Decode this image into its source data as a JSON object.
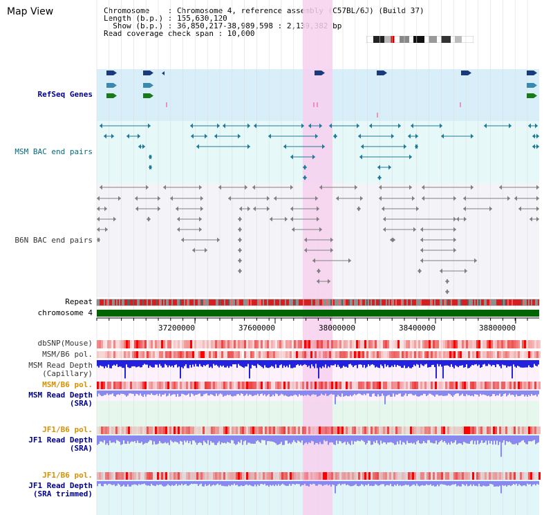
{
  "title": "Map View",
  "info": {
    "line1": "Chromosome    : Chromosome 4, reference assembly (C57BL/6J) (Build 37)",
    "line2": "Length (b.p.) : 155,630,120",
    "line3": "  Show (b.p.) : 36,850,217-38,989,598 : 2,139,382 bp",
    "line4": "Read coverage check span : 10,000"
  },
  "tracks": {
    "refseq": "RefSeq Genes",
    "msm_bac": "MSM BAC end pairs",
    "b6n_bac": "B6N BAC end pairs",
    "repeat": "Repeat",
    "chromosome": "chromosome 4",
    "dbsnp": "dbSNP(Mouse)",
    "msm_pol1": "MSM/B6 pol.",
    "msm_depth_cap": "MSM Read Depth\n(Capillary)",
    "msm_pol2": "MSM/B6 pol.",
    "msm_depth_sra": "MSM Read Depth\n(SRA)",
    "jf1_pol1": "JF1/B6 pol.",
    "jf1_depth_sra": "JF1 Read Depth\n(SRA)",
    "jf1_pol2": "JF1/B6 pol.",
    "jf1_depth_trim": "JF1 Read Depth\n(SRA trimmed)"
  },
  "axis": {
    "ticks": [
      "37200000",
      "37600000",
      "38000000",
      "38400000",
      "38800000"
    ]
  },
  "colors": {
    "highlight": "#f7d0ee",
    "refseq_bg": "#d8eff9",
    "msm_bg": "#e6f8f8",
    "b6n_bg": "#f4f4f8",
    "msm_item": "#1f7a99",
    "b6n_item": "#808080",
    "chrom_bar": "#006400",
    "depth_dark": "#2222dd",
    "depth_light": "#8888ee",
    "pol_bg": "#f8b8b8"
  }
}
